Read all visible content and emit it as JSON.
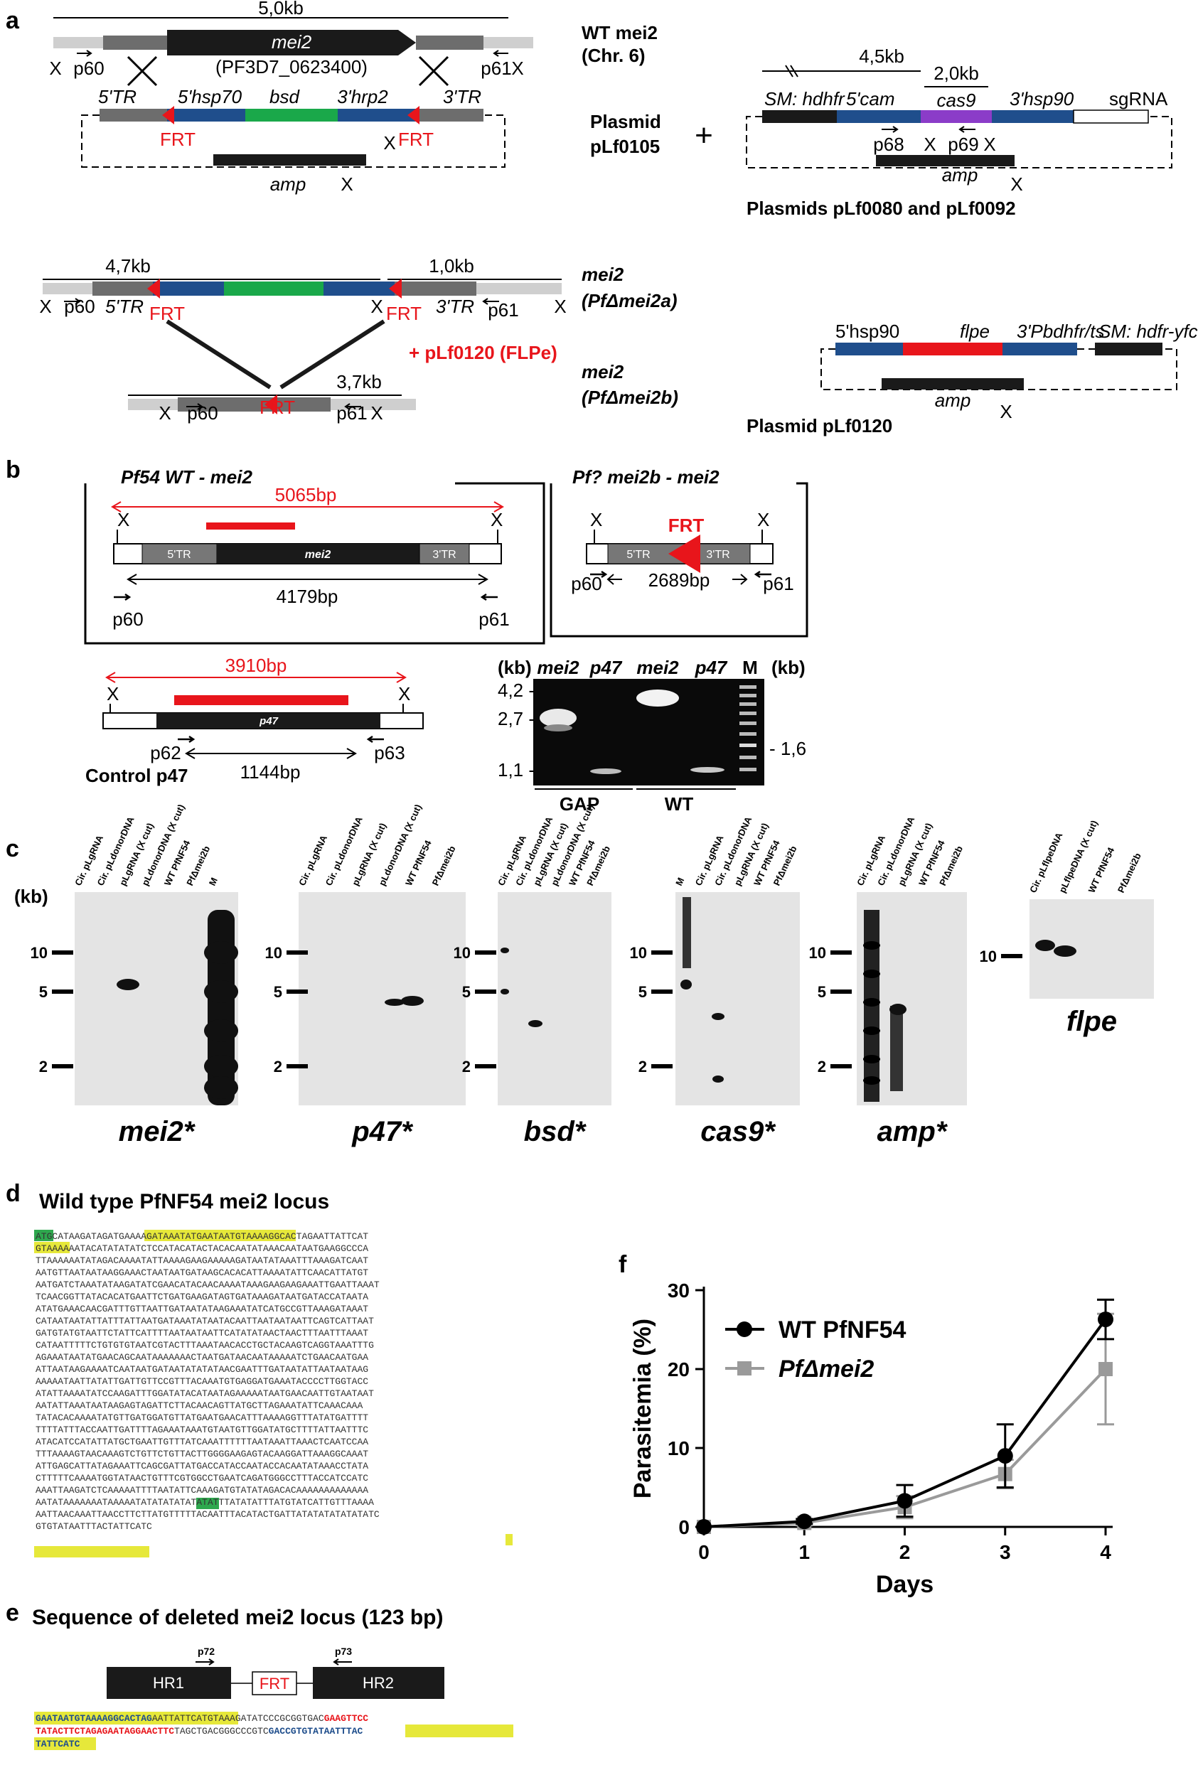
{
  "panels": {
    "a": "a",
    "b": "b",
    "c": "c",
    "d": "d",
    "e": "e",
    "f": "f"
  },
  "a": {
    "wt_size": "5,0kb",
    "wt_gene": "mei2",
    "wt_id": "(PF3D7_0623400)",
    "wt_label_1": "WT mei2",
    "wt_label_2": "(Chr. 6)",
    "p60": "p60",
    "p61": "p61",
    "p68": "p68",
    "p69": "p69",
    "x": "X",
    "pl105_5tr": "5'TR",
    "pl105_5hsp70": "5'hsp70",
    "pl105_bsd": "bsd",
    "pl105_3hrp2": "3'hrp2",
    "pl105_3tr": "3'TR",
    "frt": "FRT",
    "amp": "amp",
    "plasmid": "Plasmid",
    "pl105_name": "pLf0105",
    "plus": "+",
    "cas_size1": "4,5kb",
    "cas_size2": "2,0kb",
    "cas_sm": "SM: hdhfr",
    "cas_5cam": "5'cam",
    "cas_cas9": "cas9",
    "cas_3hsp90": "3'hsp90",
    "cas_sgrna": "sgRNA",
    "cas_plasmids": "Plasmids pLf0080 and pLf0092",
    "a_size1": "4,7kb",
    "a_size2": "1,0kb",
    "a_label1": "mei2",
    "a_label2": "(PfΔmei2a)",
    "flpe_add": "+ pLf0120 (FLPe)",
    "b_size": "3,7kb",
    "b_label1": "mei2",
    "b_label2": "(PfΔmei2b)",
    "p120_5hsp90": "5'hsp90",
    "p120_flpe": "flpe",
    "p120_3pb": "3'Pbdhfr/ts",
    "p120_sm": "SM: hdfr-yfcu",
    "p120_name": "Plasmid pLf0120"
  },
  "b": {
    "box1_title": "Pf54 WT - mei2",
    "box1_red": "5065bp",
    "box1_len": "4179bp",
    "mei2": "mei2",
    "tr5": "5'TR",
    "tr3": "3'TR",
    "box2_title": "Pf? mei2b - mei2",
    "box2_len": "2689bp",
    "frt": "FRT",
    "p47_red": "3910bp",
    "p47": "p47",
    "p62": "p62",
    "p63": "p63",
    "p47_len": "1144bp",
    "control": "Control p47",
    "gel_kb_left": "(kb)",
    "gel_kb_right": "(kb)",
    "lanes": [
      "mei2",
      "p47",
      "mei2",
      "p47",
      "M"
    ],
    "markers": [
      "4,2 -",
      "2,7 -",
      "1,1 -"
    ],
    "marker_right": "- 1,6",
    "groups": [
      "GAP",
      "WT"
    ]
  },
  "c": {
    "kb": "(kb)",
    "ticks": [
      "10",
      "5",
      "2"
    ],
    "blots": [
      {
        "title": "mei2*",
        "lanes": [
          "Cir. pLgRNA",
          "Cir. pLdonorDNA",
          "pLgRNA (X cut)",
          "pLdonorDNA (X cut)",
          "WT PfNF54",
          "PfΔmei2b",
          "M"
        ]
      },
      {
        "title": "p47*",
        "lanes": [
          "Cir. pLgRNA",
          "Cir. pLdonorDNA",
          "pLgRNA (X cut)",
          "pLdonorDNA (X cut)",
          "WT PfNF54",
          "PfΔmei2b"
        ]
      },
      {
        "title": "bsd*",
        "lanes": [
          "Cir. pLgRNA",
          "Cir. pLdonorDNA",
          "pLgRNA (X cut)",
          "pLdonorDNA (X cut)",
          "WT PfNF54",
          "PfΔmei2b"
        ]
      },
      {
        "title": "cas9*",
        "lanes": [
          "M",
          "Cir. pLgRNA",
          "Cir. pLdonorDNA",
          "pLgRNA (X cut)",
          "WT PfNF54",
          "PfΔmei2b"
        ]
      },
      {
        "title": "amp*",
        "lanes": [
          "Cir. pLgRNA",
          "Cir. pLdonorDNA",
          "pLgRNA (X cut)",
          "WT PfNF54",
          "PfΔmei2b"
        ]
      },
      {
        "title": "flpe",
        "lanes": [
          "Cir. pLflpeDNA",
          "pLflpeDNA (X cut)",
          "WT PfNF54",
          "PfΔmei2b"
        ]
      }
    ]
  },
  "d": {
    "title": "Wild type PfNF54 mei2 locus",
    "lines": [
      "ATGCATAAGATAGATGAAAAGATAAATATGAATAATGTAAAAGGCACTAGAATTATTCAT",
      "GTAAAAAATACATATATATCTCCATACATACTACACAATATAAACAATAATGAAGGCCCA",
      "TTAAAAAATATAGACAAAATATTAAAAGAAGAAAAAGATAATATAAATTTAAAGATCAAT",
      "AATGTTAATAATAAGGAAACTAATAATGATAAGCACACATTAAAATATTCAACATTATGT",
      "AATGATCTAAATATAAGATATCGAACATACAACAAAATAAAGAAGAAGAAATTGAATTAAAT",
      "TCAACGGTTATACACATGAATTCTGATGAAGATAGTGATAAAGATAATGATACCATAATA",
      "ATATGAAACAACGATTTGTTAATTGATAATATAAGAAATATCATGCCGTTAAAGATAAAT",
      "CATAATAATATTATTTATTAATGATAAATATAATACAATTAATAATAATTCAGTCATTAAT",
      "GATGTATGTAATTCTATTCATTTTAATAATAATTCATATATAACTAACTTTAATTTAAAT",
      "CATAATTTTTCTGTGTGTAATCGTACTTTAAATAACACCTGCTACAAGTCAGGTAAATTTG",
      "AGAAATAATATGAACAGCAATAAAAAAACTAATGATAACAATAAAAATCTGAACAATGAA",
      "ATTAATAAGAAAATCAATAATGATAATATATATAACGAATTTGATAATATTAATAATAAG",
      "AAAAATAATTATATTGATTGTTCCGTTTACAAATGTGAGGATGAAATACCCCTTGGTACC",
      "ATATTAAAATATCCAAGATTTGGATATACATAATAGAAAAATAATGAACAATTGTAATAAT",
      "AATATTAAATAATAAGAGTAGATTCTTACAACAGTTATGCTTAGAAATATTCAAACAAA",
      "TATACACAAAATATGTTGATGGATGTTATGAATGAACATTTAAAAGGTTTATATGATTTT",
      "TTTTATTTACCAATTGATTTTAGAAATAAATGTAATGTTGGATATGCTTTTATTAATTTC",
      "ATACATCCATATTATGCTGAATTGTTTATCAAATTTTTTAATAAATTAAACTCAATCCAA",
      "TTTAAAAGTAACAAAGTCTGTTCTGTTACTTGGGGAAGAGTACAAGGATTAAAGGCAAAT",
      "ATTGAGCATTATAGAAATTCAGCGATTATGACCATACCAATACCACAATATAAACCTATA",
      "CTTTTTCAAAATGGTATAACTGTTTCGTGGCCTGAATCAGATGGGCCTTTACCATCCATC",
      "AAATTAAGATCTCAAAAATTTTAATATTCAAAGATGTATATAGACACAAAAAAAAAAAAA",
      "AATATAAAAAAATAAAAATATATATATATATATTTATATATTTATGTATCATTGTTTAAAA",
      "AATTAACAAATTAACCTTCTTATGTTTTTACAATTTACATACTGATTATATATATATATATC",
      "GTGTATAATTTACTATTCATC"
    ]
  },
  "e": {
    "title": "Sequence of deleted mei2 locus (123 bp)",
    "hr1": "HR1",
    "frt": "FRT",
    "hr2": "HR2",
    "p72": "p72",
    "p73": "p73",
    "line1_a": "GAATAATGTAAAAGGCACTAG",
    "line1_b": "AATTATTCATGTAAA",
    "line1_c": "GATATCCCGCGGTGAC",
    "line1_d": "GAAGTTCC",
    "line2_a": "TATACTTCTAGAGAATAGGAACTTC",
    "line2_b": "TAGCTGACGGGCCCGTC",
    "line2_c": "GAC",
    "line2_d": "CGTGTATAATTTAC",
    "line3_a": "TATTCATC"
  },
  "chart_data": {
    "type": "line",
    "title": "",
    "xlabel": "Days",
    "ylabel": "Parasitemia (%)",
    "x": [
      0,
      1,
      2,
      3,
      4
    ],
    "xlim": [
      0,
      4
    ],
    "ylim": [
      0,
      30
    ],
    "yticks": [
      0,
      10,
      20,
      30
    ],
    "legend_position": "top-left",
    "series": [
      {
        "name": "WT PfNF54",
        "color": "#000000",
        "marker": "circle",
        "values": [
          0,
          0.7,
          3.3,
          9.0,
          26.3
        ],
        "errors": [
          0,
          0.3,
          2.0,
          4.0,
          2.5
        ]
      },
      {
        "name": "PfΔmei2",
        "color": "#9a9a9a",
        "marker": "square",
        "values": [
          0,
          0.5,
          2.5,
          6.7,
          20.0
        ],
        "errors": [
          0,
          0.3,
          1.4,
          1.8,
          7.0
        ]
      }
    ]
  }
}
